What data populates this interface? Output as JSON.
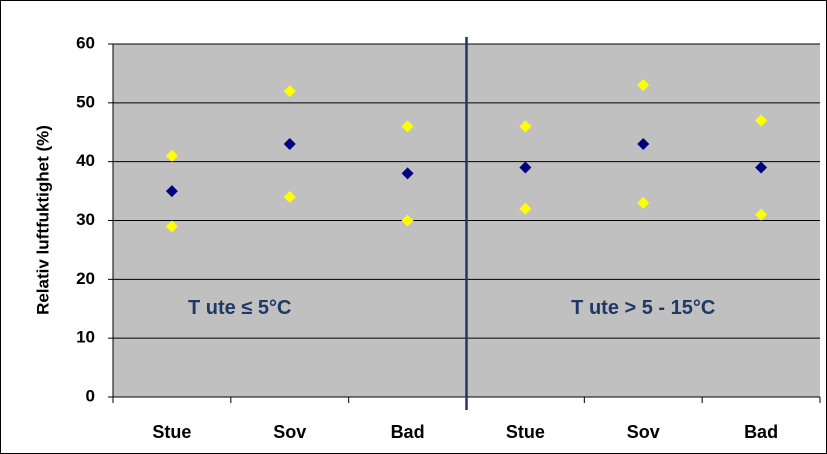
{
  "chart_data": {
    "type": "scatter",
    "y_label": "Relativ luftfuktighet (%)",
    "categories": [
      "Stue",
      "Sov",
      "Bad",
      "Stue",
      "Sov",
      "Bad"
    ],
    "series": [
      {
        "color": "#ffff00",
        "values": [
          41,
          52,
          46,
          46,
          53,
          47
        ]
      },
      {
        "color": "#000080",
        "values": [
          35,
          43,
          38,
          39,
          43,
          39
        ]
      },
      {
        "color": "#ffff00",
        "values": [
          29,
          34,
          30,
          32,
          33,
          31
        ]
      }
    ],
    "annotations": [
      "T ute ≤ 5°C",
      "T ute > 5 - 15°C"
    ],
    "ylim": [
      0,
      60
    ],
    "yticks": [
      0,
      10,
      20,
      30,
      40,
      50,
      60
    ],
    "grid": true,
    "plot_background": "#c0c0c0"
  }
}
